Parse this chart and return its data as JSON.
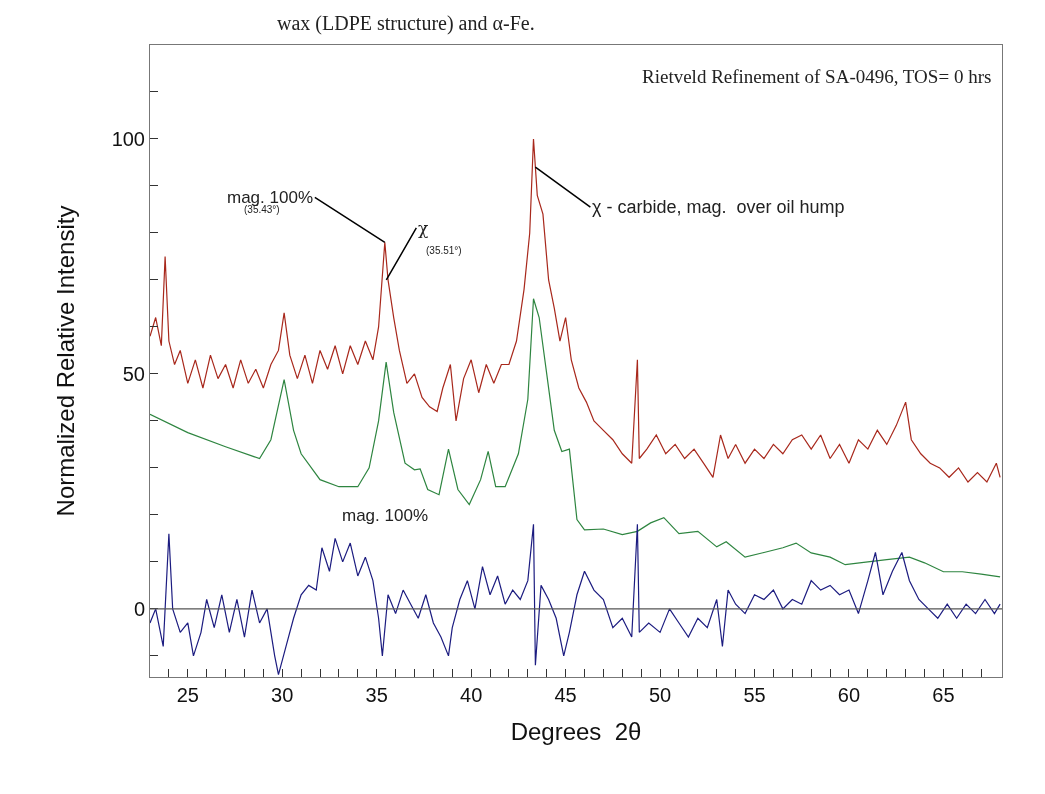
{
  "chart_data": {
    "type": "line",
    "xlabel": "Degrees  2θ",
    "ylabel": "Normalized Relative Intensity",
    "xlim": [
      23,
      68.1
    ],
    "ylim": [
      -14.5,
      120
    ],
    "xticks": [
      {
        "value": 23,
        "label": null
      },
      {
        "value": 24,
        "label": null
      },
      25,
      {
        "value": 26,
        "label": null
      },
      {
        "value": 27,
        "label": null
      },
      {
        "value": 28,
        "label": null
      },
      {
        "value": 29,
        "label": null
      },
      30,
      {
        "value": 31,
        "label": null
      },
      {
        "value": 32,
        "label": null
      },
      {
        "value": 33,
        "label": null
      },
      {
        "value": 34,
        "label": null
      },
      35,
      {
        "value": 36,
        "label": null
      },
      {
        "value": 37,
        "label": null
      },
      {
        "value": 38,
        "label": null
      },
      {
        "value": 39,
        "label": null
      },
      40,
      {
        "value": 41,
        "label": null
      },
      {
        "value": 42,
        "label": null
      },
      {
        "value": 43,
        "label": null
      },
      {
        "value": 44,
        "label": null
      },
      45,
      {
        "value": 46,
        "label": null
      },
      {
        "value": 47,
        "label": null
      },
      {
        "value": 48,
        "label": null
      },
      {
        "value": 49,
        "label": null
      },
      50,
      {
        "value": 51,
        "label": null
      },
      {
        "value": 52,
        "label": null
      },
      {
        "value": 53,
        "label": null
      },
      {
        "value": 54,
        "label": null
      },
      55,
      {
        "value": 56,
        "label": null
      },
      {
        "value": 57,
        "label": null
      },
      {
        "value": 58,
        "label": null
      },
      {
        "value": 59,
        "label": null
      },
      60,
      {
        "value": 61,
        "label": null
      },
      {
        "value": 62,
        "label": null
      },
      {
        "value": 63,
        "label": null
      },
      {
        "value": 64,
        "label": null
      },
      65,
      {
        "value": 66,
        "label": null
      },
      {
        "value": 67,
        "label": null
      }
    ],
    "yticks": [
      {
        "value": -10,
        "label": null
      },
      0,
      {
        "value": 10,
        "label": null
      },
      {
        "value": 20,
        "label": null
      },
      {
        "value": 30,
        "label": null
      },
      {
        "value": 40,
        "label": null
      },
      50,
      {
        "value": 60,
        "label": null
      },
      {
        "value": 70,
        "label": null
      },
      {
        "value": 80,
        "label": null
      },
      {
        "value": 90,
        "label": null
      },
      100,
      {
        "value": 110,
        "label": null
      }
    ],
    "marker": "none",
    "line_style": "solid",
    "ref_lines": [
      {
        "axis": "y",
        "value": 0,
        "color": "#555555",
        "line_style": "solid"
      }
    ],
    "annotations": [
      "wax (LDPE structure) and α-Fe.",
      "Rietveld Refinement of SA-0496, TOS= 0 hrs",
      {
        "text": "mag. 100%",
        "x": 35.43,
        "y": 78
      },
      "(35.43°)",
      {
        "text": "χ",
        "x": 35.51,
        "y": 70
      },
      "(35.51°)",
      {
        "text": "χ - carbide, mag.  over oil hump",
        "x": 43.4,
        "y": 94
      },
      "mag. 100%"
    ],
    "series": [
      {
        "color": "#a8281c",
        "x": [
          23.0,
          23.3,
          23.6,
          23.8,
          24.0,
          24.3,
          24.6,
          25.0,
          25.4,
          25.8,
          26.2,
          26.6,
          27.0,
          27.4,
          27.8,
          28.2,
          28.6,
          29.0,
          29.4,
          29.8,
          30.1,
          30.4,
          30.8,
          31.2,
          31.6,
          32.0,
          32.4,
          32.8,
          33.2,
          33.6,
          34.0,
          34.4,
          34.8,
          35.1,
          35.43,
          35.6,
          35.9,
          36.2,
          36.6,
          37.0,
          37.4,
          37.8,
          38.2,
          38.5,
          38.9,
          39.2,
          39.6,
          40.0,
          40.4,
          40.8,
          41.2,
          41.6,
          42.0,
          42.4,
          42.8,
          43.1,
          43.3,
          43.5,
          43.8,
          44.1,
          44.4,
          44.7,
          45.0,
          45.3,
          45.7,
          46.1,
          46.5,
          47.0,
          47.5,
          48.0,
          48.5,
          48.8,
          48.9,
          49.3,
          49.8,
          50.3,
          50.8,
          51.3,
          51.8,
          52.3,
          52.8,
          53.2,
          53.6,
          54.0,
          54.5,
          55.0,
          55.5,
          56.0,
          56.5,
          57.0,
          57.5,
          58.0,
          58.5,
          59.0,
          59.5,
          60.0,
          60.5,
          61.0,
          61.5,
          62.0,
          62.5,
          63.0,
          63.3,
          63.8,
          64.3,
          64.8,
          65.3,
          65.8,
          66.3,
          66.8,
          67.3,
          67.8,
          68.0
        ],
        "values": [
          58,
          62,
          56,
          75,
          57,
          52,
          55,
          48,
          53,
          47,
          54,
          49,
          52,
          47,
          53,
          48,
          51,
          47,
          52,
          55,
          63,
          54,
          49,
          54,
          48,
          55,
          51,
          56,
          50,
          56,
          52,
          57,
          53,
          60,
          78,
          70,
          62,
          55,
          48,
          50,
          45,
          43,
          42,
          47,
          52,
          40,
          49,
          53,
          46,
          52,
          48,
          52,
          52,
          57,
          68,
          80,
          100,
          88,
          84,
          70,
          64,
          57,
          62,
          53,
          47,
          44,
          40,
          38,
          36,
          33,
          31,
          53,
          32,
          34,
          37,
          33,
          35,
          32,
          34,
          31,
          28,
          37,
          32,
          35,
          31,
          34,
          32,
          35,
          33,
          36,
          37,
          34,
          37,
          32,
          35,
          31,
          36,
          34,
          38,
          35,
          39,
          44,
          36,
          33,
          31,
          30,
          28,
          30,
          27,
          29,
          27,
          31,
          28
        ]
      },
      {
        "color": "#2e8540",
        "x": [
          23.0,
          25.0,
          27.0,
          28.5,
          28.8,
          29.4,
          30.1,
          30.6,
          31.0,
          32.0,
          33.0,
          34.0,
          34.6,
          35.1,
          35.5,
          35.9,
          36.5,
          37.0,
          37.3,
          37.7,
          38.3,
          38.8,
          39.3,
          39.9,
          40.5,
          40.9,
          41.3,
          41.8,
          42.5,
          43.0,
          43.3,
          43.6,
          44.0,
          44.4,
          44.8,
          45.2,
          45.6,
          46.0,
          47.0,
          48.0,
          48.8,
          49.5,
          50.2,
          51.0,
          52.0,
          53.0,
          53.5,
          54.5,
          55.5,
          56.5,
          57.2,
          58.0,
          59.0,
          59.8,
          61.0,
          62.0,
          63.2,
          64.0,
          65.0,
          66.0,
          67.0,
          68.0
        ],
        "values": [
          41.4,
          37.5,
          34.5,
          32.4,
          32.0,
          36,
          48.8,
          38,
          33,
          27.5,
          26,
          26,
          30,
          40,
          52.5,
          41.8,
          31,
          29.6,
          29.8,
          25.4,
          24.3,
          34,
          25.4,
          22.2,
          27.5,
          33.5,
          26,
          26,
          33,
          44.6,
          66,
          62,
          50,
          38,
          33.5,
          34,
          19,
          16.8,
          17,
          15.8,
          16.5,
          18.3,
          19.4,
          16,
          16.5,
          13.2,
          14.3,
          11,
          12,
          13,
          14,
          11.9,
          11,
          9.4,
          10,
          10.5,
          11,
          9.8,
          7.9,
          7.9,
          7.4,
          6.8
        ]
      },
      {
        "color": "#1c1c80",
        "x": [
          23.0,
          23.3,
          23.7,
          24.0,
          24.2,
          24.6,
          25.0,
          25.3,
          25.7,
          26.0,
          26.4,
          26.8,
          27.2,
          27.6,
          28.0,
          28.4,
          28.8,
          29.2,
          29.6,
          29.8,
          30.2,
          30.6,
          31.0,
          31.4,
          31.8,
          32.1,
          32.5,
          32.8,
          33.2,
          33.6,
          34.0,
          34.4,
          34.8,
          35.1,
          35.3,
          35.6,
          36.0,
          36.4,
          36.8,
          37.2,
          37.6,
          38.0,
          38.4,
          38.8,
          39.0,
          39.4,
          39.8,
          40.2,
          40.6,
          41.0,
          41.4,
          41.8,
          42.2,
          42.6,
          43.0,
          43.3,
          43.4,
          43.7,
          44.1,
          44.5,
          44.9,
          45.2,
          45.6,
          46.0,
          46.5,
          47.0,
          47.5,
          48.0,
          48.5,
          48.8,
          48.9,
          49.4,
          50.0,
          50.5,
          51.0,
          51.5,
          52.0,
          52.5,
          53.0,
          53.3,
          53.6,
          54.0,
          54.5,
          55.0,
          55.5,
          56.0,
          56.5,
          57.0,
          57.5,
          58.0,
          58.5,
          59.0,
          59.5,
          60.0,
          60.5,
          61.0,
          61.4,
          61.8,
          62.3,
          62.8,
          63.2,
          63.7,
          64.2,
          64.7,
          65.2,
          65.7,
          66.2,
          66.7,
          67.2,
          67.7,
          68.0
        ],
        "values": [
          -3,
          0,
          -8,
          16,
          0,
          -5,
          -3,
          -10,
          -5,
          2,
          -4,
          3,
          -5,
          2,
          -6,
          4,
          -3,
          0,
          -10,
          -14,
          -8,
          -2,
          3,
          5,
          4,
          13,
          8,
          15,
          10,
          14,
          7,
          11,
          6,
          -2,
          -10,
          3,
          -1,
          4,
          1,
          -2,
          3,
          -3,
          -6,
          -10,
          -4,
          2,
          6,
          0,
          9,
          3,
          7,
          1,
          4,
          2,
          6,
          18,
          -12,
          5,
          2,
          -2,
          -10,
          -5,
          3,
          8,
          4,
          2,
          -4,
          -2,
          -6,
          18,
          -5,
          -3,
          -5,
          0,
          -3,
          -6,
          -2,
          -4,
          2,
          -8,
          4,
          1,
          -1,
          3,
          2,
          4,
          0,
          2,
          1,
          6,
          4,
          5,
          3,
          4,
          -1,
          6,
          12,
          3,
          8,
          12,
          6,
          2,
          0,
          -2,
          1,
          -2,
          1,
          -1,
          2,
          -1,
          1
        ]
      }
    ]
  }
}
